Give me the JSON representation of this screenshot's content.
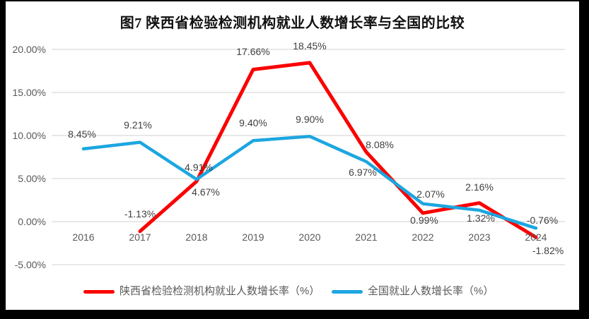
{
  "title": "图7 陕西省检验检测机构就业人数增长率与全国的比较",
  "colors": {
    "shaanxi_red": "#fb0000",
    "national_blue": "#1ca6e0",
    "gridline": "#d9d9d9",
    "axis_text": "#595959",
    "label_text": "#404040",
    "background": "#ffffff",
    "frame": "#000000"
  },
  "chart_data": {
    "type": "line",
    "title": "图7 陕西省检验检测机构就业人数增长率与全国的比较",
    "categories": [
      "2016",
      "2017",
      "2018",
      "2019",
      "2020",
      "2021",
      "2022",
      "2023",
      "2024"
    ],
    "series": [
      {
        "name": "陕西省检验检测机构就业人数增长率（%）",
        "color_key": "shaanxi_red",
        "values": [
          null,
          -1.13,
          4.67,
          17.66,
          18.45,
          8.08,
          0.99,
          2.16,
          -1.82
        ],
        "labels": [
          "",
          "-1.13%",
          "4.67%",
          "17.66%",
          "18.45%",
          "8.08%",
          "0.99%",
          "2.16%",
          "-1.82%"
        ]
      },
      {
        "name": "全国就业人数增长率（%）",
        "color_key": "national_blue",
        "values": [
          8.45,
          9.21,
          4.91,
          9.4,
          9.9,
          6.97,
          2.07,
          1.32,
          -0.76
        ],
        "labels": [
          "8.45%",
          "9.21%",
          "4.91%",
          "9.40%",
          "9.90%",
          "6.97%",
          "2.07%",
          "1.32%",
          "-0.76%"
        ]
      }
    ],
    "y_axis": {
      "tick_labels": [
        "20.00%",
        "15.00%",
        "10.00%",
        "5.00%",
        "0.00%",
        "-5.00%"
      ],
      "tick_values": [
        20,
        15,
        10,
        5,
        0,
        -5
      ],
      "min": -5,
      "max": 20,
      "unit": "percent"
    },
    "x_axis": {
      "labels_position": "next-to-zero-axis"
    },
    "grid": true,
    "legend_position": "bottom",
    "data_labels_visible": true
  }
}
